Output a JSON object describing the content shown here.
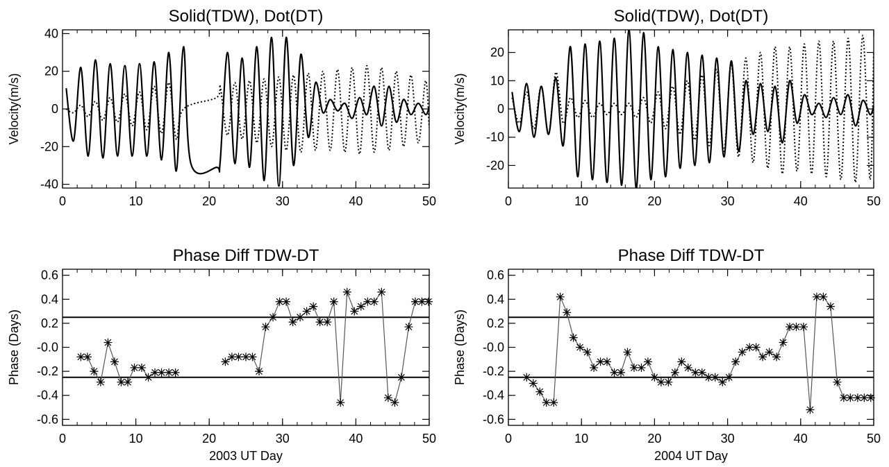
{
  "chart_data": [
    {
      "type": "line",
      "title": "Solid(TDW), Dot(DT)",
      "ylabel": "Velocity(m/s)",
      "xlabel": "",
      "xlim": [
        0,
        50
      ],
      "ylim": [
        -42,
        42
      ],
      "xticks": [
        "0",
        "10",
        "20",
        "30",
        "40",
        "50"
      ],
      "yticks": [
        "-40",
        "-20",
        "0",
        "20",
        "40"
      ],
      "grid": false,
      "legend": "none",
      "series": [
        {
          "style": "solid",
          "x": [
            0.5,
            1.5,
            2.5,
            3.5,
            4.5,
            5.5,
            6.5,
            7.5,
            8.5,
            9.5,
            10.5,
            11.5,
            12.5,
            13.5,
            14.5,
            15.5,
            16.5,
            17.5,
            21.0,
            21.5,
            22.5,
            23.5,
            24.5,
            25.5,
            26.5,
            27.5,
            28.5,
            29.5,
            30.5,
            31.5,
            32.5,
            33.5,
            34.5,
            35.5,
            36.5,
            37.5,
            38.5,
            39.5,
            40.5,
            41.5,
            42.5,
            43.5,
            44.5,
            45.5,
            46.5,
            47.5,
            48.5,
            49.5,
            50.0
          ],
          "y": [
            11,
            -17,
            22,
            -25,
            26,
            -26,
            24,
            -25,
            23,
            -25,
            24,
            -25,
            25,
            -27,
            30,
            -33,
            33,
            -29,
            -31,
            -28,
            30,
            -29,
            27,
            -31,
            33,
            -38,
            38,
            -41,
            38,
            -30,
            29,
            -15,
            14,
            -2,
            5,
            -1,
            3,
            -5,
            6,
            -3,
            12,
            -9,
            12,
            -7,
            5,
            -3,
            3,
            -3,
            1
          ]
        },
        {
          "style": "dotted",
          "x": [
            0.5,
            1.5,
            2.5,
            3.5,
            4.5,
            5.5,
            6.5,
            7.5,
            8.5,
            9.5,
            10.5,
            11.5,
            12.5,
            13.5,
            14.5,
            15.5,
            16.5,
            21.0,
            21.5,
            22.5,
            23.5,
            24.5,
            25.5,
            26.5,
            27.5,
            28.5,
            29.5,
            30.5,
            31.5,
            32.5,
            33.5,
            34.5,
            35.5,
            36.5,
            37.5,
            38.5,
            39.5,
            40.5,
            41.5,
            42.5,
            43.5,
            44.5,
            45.5,
            46.5,
            47.5,
            48.5,
            49.5,
            50.0
          ],
          "y": [
            0,
            -2,
            2,
            -4,
            4,
            -6,
            6,
            -7,
            8,
            -9,
            9,
            -11,
            12,
            -13,
            14,
            -16,
            0,
            6,
            12,
            -14,
            14,
            -16,
            15,
            -18,
            16,
            -20,
            17,
            -22,
            18,
            -23,
            19,
            -22,
            20,
            -22,
            21,
            -23,
            22,
            -24,
            23,
            -23,
            22,
            -22,
            20,
            -20,
            18,
            -18,
            15,
            -10
          ]
        }
      ]
    },
    {
      "type": "line",
      "title": "Solid(TDW), Dot(DT)",
      "ylabel": "Velocity(m/s)",
      "xlabel": "",
      "xlim": [
        0,
        50
      ],
      "ylim": [
        -28,
        28
      ],
      "xticks": [
        "0",
        "10",
        "20",
        "30",
        "40",
        "50"
      ],
      "yticks": [
        "-20",
        "-10",
        "0",
        "10",
        "20"
      ],
      "grid": false,
      "legend": "none",
      "series": [
        {
          "style": "solid",
          "x": [
            0.5,
            1.5,
            2.5,
            3.5,
            4.5,
            5.5,
            6.5,
            7.5,
            8.5,
            9.5,
            10.5,
            11.5,
            12.5,
            13.5,
            14.5,
            15.5,
            16.5,
            17.5,
            18.5,
            19.5,
            20.5,
            21.5,
            22.5,
            23.5,
            24.5,
            25.5,
            26.5,
            27.5,
            28.5,
            29.5,
            30.5,
            31.5,
            32.5,
            33.5,
            34.5,
            35.5,
            36.5,
            37.5,
            38.5,
            39.5,
            40.5,
            41.5,
            42.5,
            43.5,
            44.5,
            45.5,
            46.5,
            47.5,
            48.5,
            49.5,
            50.0
          ],
          "y": [
            6,
            -8,
            9,
            -10,
            8,
            -9,
            11,
            -13,
            22,
            -24,
            23,
            -25,
            24,
            -26,
            25,
            -27,
            28,
            -28,
            27,
            -25,
            22,
            -24,
            21,
            -21,
            20,
            -20,
            19,
            -19,
            18,
            -17,
            17,
            -15,
            10,
            -9,
            9,
            -8,
            8,
            -12,
            10,
            -5,
            5,
            -2,
            2,
            -3,
            4,
            -2,
            5,
            -6,
            3,
            -2,
            1
          ]
        },
        {
          "style": "dotted",
          "x": [
            0.5,
            1.5,
            2.5,
            3.5,
            4.5,
            5.5,
            6.5,
            7.5,
            8.5,
            9.5,
            10.5,
            11.5,
            12.5,
            13.5,
            14.5,
            15.5,
            16.5,
            17.5,
            18.5,
            19.5,
            20.5,
            21.5,
            22.5,
            23.5,
            24.5,
            25.5,
            26.5,
            27.5,
            28.5,
            29.5,
            30.5,
            31.5,
            32.5,
            33.5,
            34.5,
            35.5,
            36.5,
            37.5,
            38.5,
            39.5,
            40.5,
            41.5,
            42.5,
            43.5,
            44.5,
            45.5,
            46.5,
            47.5,
            48.5,
            49.5,
            50.0
          ],
          "y": [
            4,
            -5,
            6,
            -7,
            8,
            -9,
            13,
            -5,
            4,
            -3,
            3,
            -3,
            2,
            -2,
            2,
            -2,
            2,
            -3,
            4,
            -5,
            6,
            -7,
            8,
            -9,
            10,
            -11,
            12,
            -13,
            14,
            -15,
            16,
            -17,
            18,
            -19,
            20,
            -21,
            22,
            -23,
            22,
            -22,
            23,
            -23,
            24,
            -24,
            24,
            -25,
            25,
            -26,
            26,
            -25,
            20
          ]
        }
      ]
    },
    {
      "type": "line",
      "title": "Phase Diff TDW-DT",
      "ylabel": "Phase (Days)",
      "xlabel": "2003 UT Day",
      "xlim": [
        0,
        50
      ],
      "ylim": [
        -0.65,
        0.65
      ],
      "xticks": [
        "0",
        "10",
        "20",
        "30",
        "40",
        "50"
      ],
      "yticks": [
        "-0.6",
        "-0.4",
        "-0.2",
        "-0.0",
        "0.2",
        "0.4",
        "0.6"
      ],
      "hlines": [
        0.25,
        -0.25
      ],
      "grid": false,
      "legend": "none",
      "series": [
        {
          "marker": "asterisk",
          "x": [
            2.5,
            3.4,
            4.3,
            5.2,
            6.2,
            7.1,
            8.0,
            8.9,
            9.8,
            10.8,
            11.7,
            12.6,
            13.5,
            14.5,
            15.4
          ],
          "y": [
            -0.08,
            -0.08,
            -0.2,
            -0.29,
            0.04,
            -0.12,
            -0.29,
            -0.29,
            -0.17,
            -0.17,
            -0.25,
            -0.21,
            -0.21,
            -0.21,
            -0.21
          ]
        },
        {
          "marker": "asterisk",
          "x": [
            22.2,
            23.1,
            24.0,
            25.0,
            25.9,
            26.8,
            27.7,
            28.7,
            29.6,
            30.5,
            31.4,
            32.4,
            33.3,
            34.2,
            35.1,
            36.1,
            37.0,
            37.9,
            38.8,
            39.8,
            40.7,
            41.6,
            42.5,
            43.5,
            44.4,
            45.3,
            46.2,
            47.2,
            48.1,
            49.0,
            49.9
          ],
          "y": [
            -0.12,
            -0.08,
            -0.08,
            -0.08,
            -0.08,
            -0.2,
            0.17,
            0.25,
            0.38,
            0.38,
            0.21,
            0.25,
            0.3,
            0.34,
            0.21,
            0.21,
            0.38,
            -0.46,
            0.46,
            0.3,
            0.34,
            0.38,
            0.38,
            0.46,
            -0.42,
            -0.46,
            -0.25,
            0.17,
            0.38,
            0.38,
            0.38
          ]
        }
      ]
    },
    {
      "type": "line",
      "title": "Phase Diff TDW-DT",
      "ylabel": "Phase (Days)",
      "xlabel": "2004 UT Day",
      "xlim": [
        0,
        50
      ],
      "ylim": [
        -0.65,
        0.65
      ],
      "xticks": [
        "0",
        "10",
        "20",
        "30",
        "40",
        "50"
      ],
      "yticks": [
        "-0.6",
        "-0.4",
        "-0.2",
        "-0.0",
        "0.2",
        "0.4",
        "0.6"
      ],
      "hlines": [
        0.25,
        -0.25
      ],
      "grid": false,
      "legend": "none",
      "series": [
        {
          "marker": "asterisk",
          "x": [
            2.5,
            3.4,
            4.3,
            5.2,
            6.2,
            7.1,
            8.0,
            8.9,
            9.8,
            10.8,
            11.7,
            12.6,
            13.5,
            14.5,
            15.4,
            16.3,
            17.2,
            18.2,
            19.1,
            20.0,
            20.9,
            21.9,
            22.8,
            23.7,
            24.6,
            25.6,
            26.5,
            27.4,
            28.3,
            29.3,
            30.2,
            31.1,
            32.0,
            33.0,
            33.9,
            34.8,
            35.7,
            36.7,
            37.6,
            38.5,
            39.4,
            40.4,
            41.3,
            42.2,
            43.1,
            44.1,
            45.0,
            45.9,
            46.8,
            47.8,
            48.7,
            49.6
          ],
          "y": [
            -0.25,
            -0.3,
            -0.37,
            -0.46,
            -0.46,
            0.42,
            0.29,
            0.08,
            -0.0,
            -0.04,
            -0.17,
            -0.12,
            -0.12,
            -0.21,
            -0.21,
            -0.04,
            -0.17,
            -0.17,
            -0.12,
            -0.25,
            -0.29,
            -0.29,
            -0.21,
            -0.12,
            -0.17,
            -0.21,
            -0.21,
            -0.25,
            -0.25,
            -0.29,
            -0.25,
            -0.12,
            -0.04,
            -0.0,
            -0.0,
            -0.08,
            -0.04,
            -0.08,
            0.04,
            0.17,
            0.17,
            0.17,
            -0.52,
            0.42,
            0.42,
            0.34,
            -0.29,
            -0.42,
            -0.42,
            -0.42,
            -0.42,
            -0.42
          ]
        }
      ]
    }
  ]
}
